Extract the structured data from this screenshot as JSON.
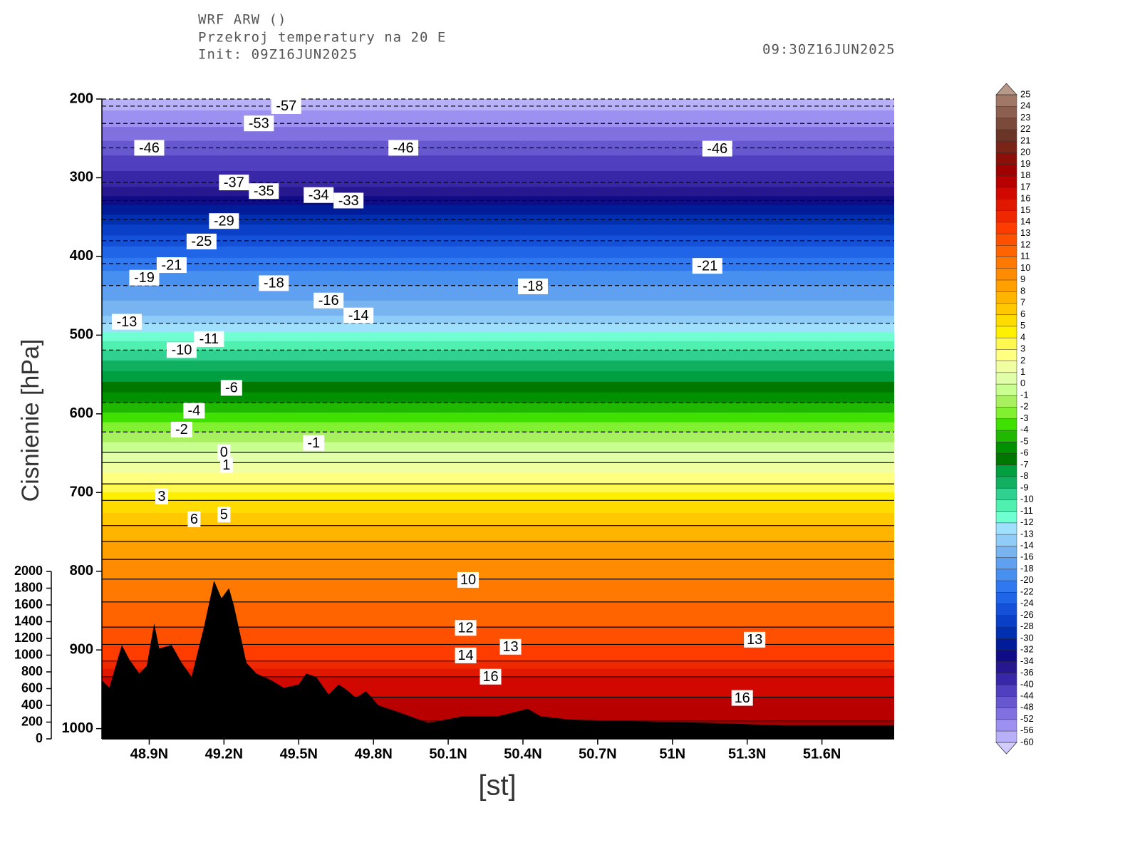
{
  "chart_data": {
    "type": "contour",
    "title_lines": [
      "WRF ARW ()",
      "Przekroj temperatury na 20 E",
      "Init: 09Z16JUN2025"
    ],
    "valid_time": "09:30Z16JUN2025",
    "xlabel": "[st]",
    "ylabel": "Cisnienie [hPa]",
    "xlim": [
      48.71,
      51.89
    ],
    "xticks": [
      {
        "value": 48.9,
        "label": "48.9N"
      },
      {
        "value": 49.2,
        "label": "49.2N"
      },
      {
        "value": 49.5,
        "label": "49.5N"
      },
      {
        "value": 49.8,
        "label": "49.8N"
      },
      {
        "value": 50.1,
        "label": "50.1N"
      },
      {
        "value": 50.4,
        "label": "50.4N"
      },
      {
        "value": 50.7,
        "label": "50.7N"
      },
      {
        "value": 51,
        "label": "51N"
      },
      {
        "value": 51.3,
        "label": "51.3N"
      },
      {
        "value": 51.6,
        "label": "51.6N"
      }
    ],
    "ylim": [
      200,
      1013
    ],
    "y_inverted": true,
    "yticks": [
      200,
      300,
      400,
      500,
      600,
      700,
      800,
      900,
      1000
    ],
    "y2lim": [
      0,
      2000
    ],
    "y2ticks": [
      0,
      200,
      400,
      600,
      800,
      1000,
      1200,
      1400,
      1600,
      1800,
      2000
    ],
    "profile": {
      "pressure": [
        200,
        209,
        231,
        262,
        306,
        329,
        353,
        380,
        409,
        437,
        485,
        519,
        586,
        623,
        649,
        662,
        689,
        710,
        742,
        762,
        785,
        810,
        839,
        871,
        893,
        914,
        934,
        960,
        990,
        1013
      ],
      "temperature": [
        -60,
        -57,
        -53,
        -46,
        -37,
        -33,
        -29,
        -25,
        -21,
        -18,
        -13,
        -10,
        -5,
        -2,
        0,
        1,
        3,
        5,
        7,
        8,
        9,
        10,
        11,
        12,
        13,
        14,
        16,
        17,
        18,
        19
      ]
    },
    "contour_color": "#000000",
    "terrain": {
      "axis": "y2",
      "color": "#000000",
      "x": [
        48.71,
        48.74,
        48.79,
        48.82,
        48.86,
        48.89,
        48.92,
        48.94,
        48.99,
        49.03,
        49.07,
        49.12,
        49.16,
        49.19,
        49.22,
        49.24,
        49.29,
        49.33,
        49.39,
        49.44,
        49.5,
        49.53,
        49.57,
        49.62,
        49.66,
        49.69,
        49.73,
        49.77,
        49.82,
        49.9,
        50.02,
        50.16,
        50.3,
        50.42,
        50.47,
        50.59,
        50.87,
        51.16,
        51.45,
        51.89
      ],
      "values": [
        700,
        610,
        1120,
        950,
        780,
        870,
        1380,
        1080,
        1120,
        910,
        740,
        1340,
        1890,
        1680,
        1800,
        1590,
        910,
        780,
        700,
        610,
        650,
        780,
        740,
        530,
        650,
        590,
        490,
        570,
        400,
        320,
        190,
        270,
        270,
        360,
        270,
        230,
        210,
        190,
        160,
        160
      ]
    },
    "colorbar": {
      "levels": [
        -60,
        -56,
        -52,
        -48,
        -44,
        -40,
        -36,
        -34,
        -32,
        -30,
        -28,
        -26,
        -24,
        -22,
        -20,
        -18,
        -16,
        -14,
        -13,
        -12,
        -11,
        -10,
        -9,
        -8,
        -7,
        -6,
        -5,
        -4,
        -3,
        -2,
        -1,
        0,
        1,
        2,
        3,
        4,
        5,
        6,
        7,
        8,
        9,
        10,
        11,
        12,
        13,
        14,
        15,
        16,
        17,
        18,
        19,
        20,
        21,
        22,
        23,
        24,
        25
      ],
      "colors": [
        "#b8b0f8",
        "#9c90f0",
        "#8070e0",
        "#6858d0",
        "#5040c0",
        "#3828a8",
        "#281890",
        "#100c88",
        "#001c98",
        "#0030b0",
        "#0a40c8",
        "#1450d8",
        "#2064e8",
        "#3078f0",
        "#4890f0",
        "#60a0f0",
        "#78b4f0",
        "#90ccf8",
        "#a0e0ff",
        "#70ffd0",
        "#50f0b0",
        "#30d090",
        "#10b060",
        "#00a040",
        "#007800",
        "#009000",
        "#20b800",
        "#40e000",
        "#80f030",
        "#a8f060",
        "#c8ff90",
        "#e0ffa8",
        "#f0ffa0",
        "#ffff80",
        "#fff850",
        "#fff000",
        "#ffdc00",
        "#ffc800",
        "#ffb400",
        "#ffa000",
        "#ff8c00",
        "#ff7800",
        "#ff6400",
        "#ff5000",
        "#ff3c00",
        "#f02800",
        "#e01800",
        "#d00800",
        "#b80000",
        "#a00000",
        "#8c1008",
        "#7a2418",
        "#6a3426",
        "#7a4a3a",
        "#8c6050",
        "#a07868"
      ],
      "under_color": "#d0ccff",
      "over_color": "#b89888"
    },
    "contour_labels": [
      {
        "value": -57,
        "x": 49.45,
        "y": 209
      },
      {
        "value": -53,
        "x": 49.34,
        "y": 231
      },
      {
        "value": -46,
        "x": 48.9,
        "y": 262
      },
      {
        "value": -46,
        "x": 49.92,
        "y": 262
      },
      {
        "value": -46,
        "x": 51.18,
        "y": 263
      },
      {
        "value": -37,
        "x": 49.24,
        "y": 306
      },
      {
        "value": -35,
        "x": 49.36,
        "y": 317
      },
      {
        "value": -34,
        "x": 49.58,
        "y": 322
      },
      {
        "value": -33,
        "x": 49.7,
        "y": 329
      },
      {
        "value": -29,
        "x": 49.2,
        "y": 355
      },
      {
        "value": -25,
        "x": 49.11,
        "y": 381
      },
      {
        "value": -21,
        "x": 48.99,
        "y": 411
      },
      {
        "value": -21,
        "x": 51.14,
        "y": 412
      },
      {
        "value": -19,
        "x": 48.88,
        "y": 427
      },
      {
        "value": -18,
        "x": 49.4,
        "y": 434
      },
      {
        "value": -18,
        "x": 50.44,
        "y": 438
      },
      {
        "value": -16,
        "x": 49.62,
        "y": 456
      },
      {
        "value": -14,
        "x": 49.74,
        "y": 475
      },
      {
        "value": -13,
        "x": 48.81,
        "y": 483
      },
      {
        "value": -11,
        "x": 49.14,
        "y": 505
      },
      {
        "value": -10,
        "x": 49.03,
        "y": 519
      },
      {
        "value": -6,
        "x": 49.23,
        "y": 567
      },
      {
        "value": -4,
        "x": 49.08,
        "y": 596
      },
      {
        "value": -2,
        "x": 49.03,
        "y": 620
      },
      {
        "value": -1,
        "x": 49.56,
        "y": 637
      },
      {
        "value": 0,
        "x": 49.2,
        "y": 649
      },
      {
        "value": 1,
        "x": 49.21,
        "y": 665
      },
      {
        "value": 3,
        "x": 48.95,
        "y": 705
      },
      {
        "value": 5,
        "x": 49.2,
        "y": 728
      },
      {
        "value": 6,
        "x": 49.08,
        "y": 734
      },
      {
        "value": 10,
        "x": 50.18,
        "y": 811
      },
      {
        "value": 12,
        "x": 50.17,
        "y": 872
      },
      {
        "value": 13,
        "x": 50.35,
        "y": 896
      },
      {
        "value": 13,
        "x": 51.33,
        "y": 887
      },
      {
        "value": 14,
        "x": 50.17,
        "y": 907
      },
      {
        "value": 16,
        "x": 50.27,
        "y": 934
      },
      {
        "value": 16,
        "x": 51.28,
        "y": 961
      }
    ]
  }
}
